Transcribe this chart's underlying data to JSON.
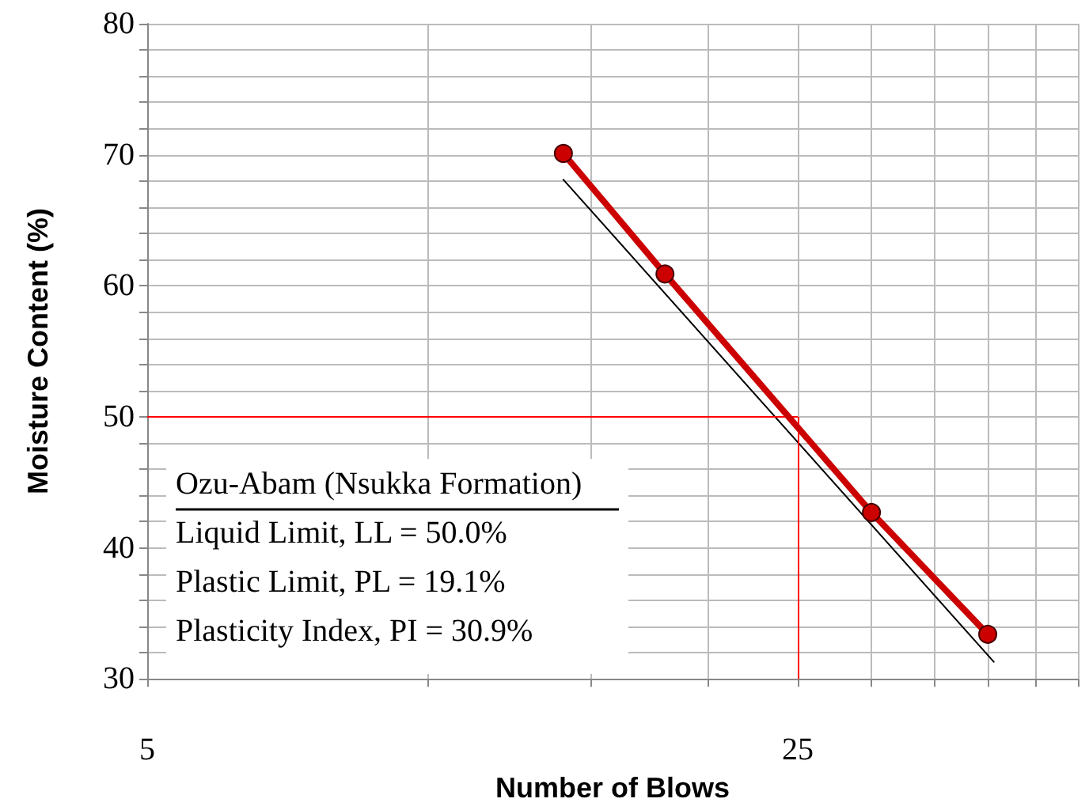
{
  "chart_data": {
    "type": "line",
    "xlabel": "Number of Blows",
    "ylabel": "Moisture Content (%)",
    "log": "x",
    "xlim": [
      5,
      50
    ],
    "ylim": [
      30,
      80
    ],
    "xticks": [
      5,
      {
        "value": 10,
        "label": null
      },
      {
        "value": 15,
        "label": null
      },
      {
        "value": 20,
        "label": null
      },
      25,
      {
        "value": 30,
        "label": null
      },
      {
        "value": 35,
        "label": null
      },
      {
        "value": 40,
        "label": null
      },
      {
        "value": 45,
        "label": null
      },
      {
        "value": 50,
        "label": null
      }
    ],
    "yticks": [
      30,
      {
        "value": 32,
        "label": null
      },
      {
        "value": 34,
        "label": null
      },
      {
        "value": 36,
        "label": null
      },
      {
        "value": 38,
        "label": null
      },
      40,
      {
        "value": 42,
        "label": null
      },
      {
        "value": 44,
        "label": null
      },
      {
        "value": 46,
        "label": null
      },
      {
        "value": 48,
        "label": null
      },
      50,
      {
        "value": 52,
        "label": null
      },
      {
        "value": 54,
        "label": null
      },
      {
        "value": 56,
        "label": null
      },
      {
        "value": 58,
        "label": null
      },
      60,
      {
        "value": 62,
        "label": null
      },
      {
        "value": 64,
        "label": null
      },
      {
        "value": 66,
        "label": null
      },
      {
        "value": 68,
        "label": null
      },
      70,
      {
        "value": 72,
        "label": null
      },
      {
        "value": 74,
        "label": null
      },
      {
        "value": 76,
        "label": null
      },
      {
        "value": 78,
        "label": null
      },
      80
    ],
    "grid": true,
    "series": [
      {
        "color": "#cc0000",
        "x": [
          14,
          18,
          30,
          40
        ],
        "values": [
          70.1,
          60.9,
          42.7,
          33.4
        ],
        "marker": "circle",
        "line_style": "solid"
      },
      {
        "type": "line",
        "color": "#000000",
        "x": [
          14,
          40.6
        ],
        "values": [
          68.1,
          31.3
        ],
        "marker": "none",
        "line_style": "solid"
      }
    ],
    "ref_lines": [
      {
        "axis": "y",
        "value": 50,
        "color": "#ff0000"
      },
      {
        "axis": "x",
        "value": 25,
        "color": "#ff0000"
      }
    ],
    "annotations": [
      "Ozu-Abam (Nsukka Formation)",
      "Liquid Limit, LL = 50.0%",
      "Plastic Limit, PL = 19.1%",
      "Plasticity Index, PI = 30.9%"
    ]
  }
}
